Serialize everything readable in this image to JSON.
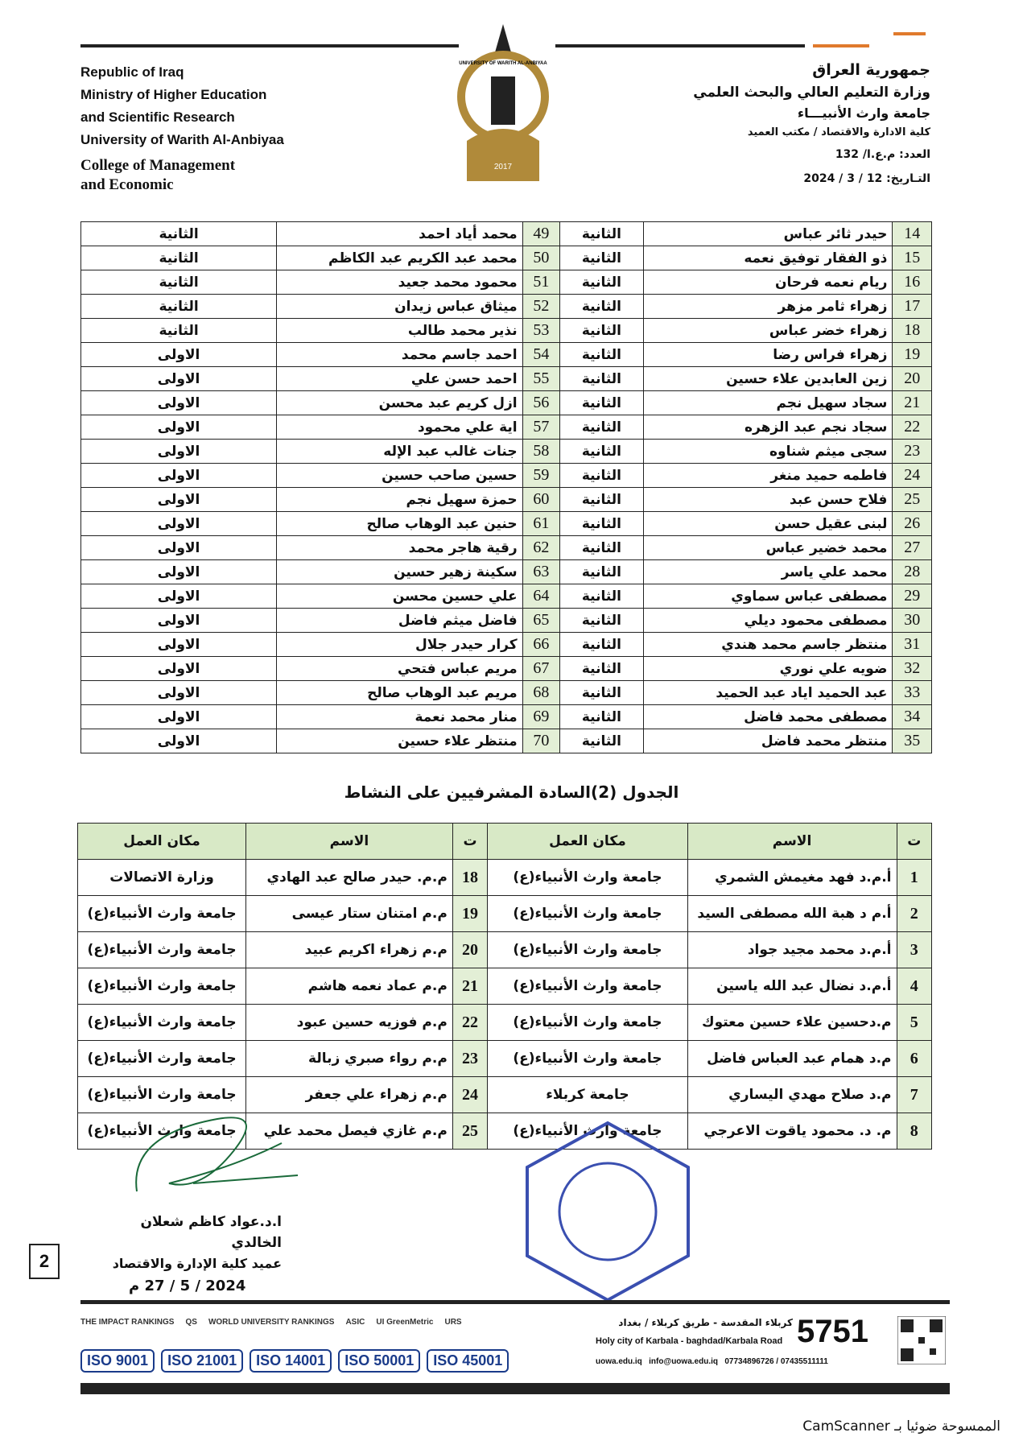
{
  "header": {
    "english": [
      "Republic of Iraq",
      "Ministry of Higher Education",
      "and Scientific Research",
      "University of Warith Al-Anbiyaa"
    ],
    "college": [
      "College of Management",
      "and Economic"
    ],
    "arabic": [
      "جمهورية العراق",
      "وزارة التعليم العالي والبحث العلمي",
      "جامعة وارث الأنبيـــاء",
      "كلية الادارة والاقتصاد / مكتب العميد"
    ],
    "number": "العدد: م.ع.ا/ 132",
    "date": "التـاريخ: 12 / 3 / 2024",
    "logo_text": "UNIVERSITY OF WARITH AL-ANBIYAA",
    "logo_year": "2017"
  },
  "table1": {
    "rows": [
      [
        14,
        "حيدر ثائر عباس",
        "الثانية",
        49,
        "محمد أياد احمد",
        "الثانية"
      ],
      [
        15,
        "ذو الفقار توفيق نعمه",
        "الثانية",
        50,
        "محمد عبد الكريم عبد الكاظم",
        "الثانية"
      ],
      [
        16,
        "ريام نعمه فرحان",
        "الثانية",
        51,
        "محمود محمد جعيد",
        "الثانية"
      ],
      [
        17,
        "زهراء ثامر مزهر",
        "الثانية",
        52,
        "ميثاق عباس زيدان",
        "الثانية"
      ],
      [
        18,
        "زهراء خضر عباس",
        "الثانية",
        53,
        "نذير محمد طالب",
        "الثانية"
      ],
      [
        19,
        "زهراء فراس رضا",
        "الثانية",
        54,
        "احمد جاسم محمد",
        "الاولى"
      ],
      [
        20,
        "زين العابدين علاء حسين",
        "الثانية",
        55,
        "احمد حسن علي",
        "الاولى"
      ],
      [
        21,
        "سجاد سهيل نجم",
        "الثانية",
        56,
        "ازل كريم عبد محسن",
        "الاولى"
      ],
      [
        22,
        "سجاد نجم عبد الزهره",
        "الثانية",
        57,
        "اية علي محمود",
        "الاولى"
      ],
      [
        23,
        "سجى ميثم شناوه",
        "الثانية",
        58,
        "جنات غالب عبد الإله",
        "الاولى"
      ],
      [
        24,
        "فاطمه حميد منغر",
        "الثانية",
        59,
        "حسين صاحب حسين",
        "الاولى"
      ],
      [
        25,
        "فلاح حسن عبد",
        "الثانية",
        60,
        "حمزة سهيل نجم",
        "الاولى"
      ],
      [
        26,
        "لبنى عقيل حسن",
        "الثانية",
        61,
        "حنين عبد الوهاب صالح",
        "الاولى"
      ],
      [
        27,
        "محمد خضير عباس",
        "الثانية",
        62,
        "رقية هاجر محمد",
        "الاولى"
      ],
      [
        28,
        "محمد علي ياسر",
        "الثانية",
        63,
        "سكينة زهير حسين",
        "الاولى"
      ],
      [
        29,
        "مصطفى عباس سماوي",
        "الثانية",
        64,
        "علي حسين محسن",
        "الاولى"
      ],
      [
        30,
        "مصطفى محمود ديلي",
        "الثانية",
        65,
        "فاضل ميثم فاضل",
        "الاولى"
      ],
      [
        31,
        "منتظر جاسم محمد هندي",
        "الثانية",
        66,
        "كرار حيدر جلال",
        "الاولى"
      ],
      [
        32,
        "ضويه علي نوري",
        "الثانية",
        67,
        "مريم عباس فتحي",
        "الاولى"
      ],
      [
        33,
        "عبد الحميد اياد عبد الحميد",
        "الثانية",
        68,
        "مريم عبد الوهاب صالح",
        "الاولى"
      ],
      [
        34,
        "مصطفى محمد فاضل",
        "الثانية",
        69,
        "منار محمد نعمة",
        "الاولى"
      ],
      [
        35,
        "منتظر محمد فاضل",
        "الثانية",
        70,
        "منتظر علاء حسين",
        "الاولى"
      ]
    ]
  },
  "table2": {
    "title": "الجدول (2)السادة المشرفيين على النشاط",
    "header": [
      "ت",
      "الاسم",
      "مكان العمل",
      "ت",
      "الاسم",
      "مكان العمل"
    ],
    "rows": [
      [
        1,
        "أ.م.د فهد مغيمش الشمري",
        "جامعة وارث الأنبياء(ع)",
        18,
        "م.م. حيدر صالح عبد الهادي",
        "وزارة الاتصالات"
      ],
      [
        2,
        "أ.م د هبة الله مصطفى السيد",
        "جامعة وارث الأنبياء(ع)",
        19,
        "م.م امتنان ستار عيسى",
        "جامعة وارث الأنبياء(ع)"
      ],
      [
        3,
        "أ.م.د محمد مجيد جواد",
        "جامعة وارث الأنبياء(ع)",
        20,
        "م.م زهراء اكريم عبيد",
        "جامعة وارث الأنبياء(ع)"
      ],
      [
        4,
        "أ.م.د نضال عبد الله ياسين",
        "جامعة وارث الأنبياء(ع)",
        21,
        "م.م عماد نعمه هاشم",
        "جامعة وارث الأنبياء(ع)"
      ],
      [
        5,
        "م.دحسين علاء حسين معتوك",
        "جامعة وارث الأنبياء(ع)",
        22,
        "م.م فوزيه حسين عبود",
        "جامعة وارث الأنبياء(ع)"
      ],
      [
        6,
        "م.د همام عبد العباس فاضل",
        "جامعة وارث الأنبياء(ع)",
        23,
        "م.م رواء صبري زبالة",
        "جامعة وارث الأنبياء(ع)"
      ],
      [
        7,
        "م.د صلاح مهدي اليساري",
        "جامعة كربلاء",
        24,
        "م.م زهراء علي جعفر",
        "جامعة وارث الأنبياء(ع)"
      ],
      [
        8,
        "م. د. محمود ياقوت الاعرجي",
        "جامعة وارث الأنبياء(ع)",
        25,
        "م.م غازي فيصل محمد علي",
        "جامعة وارث الأنبياء(ع)"
      ]
    ]
  },
  "signature": {
    "name": "ا.د.عواد كاظم شعلان الخالدي",
    "title": "عميد كلية الإدارة والاقتصاد",
    "date": "2024 / 5 / 27 م"
  },
  "page_number": "2",
  "footer": {
    "rankings": [
      "THE IMPACT RANKINGS",
      "QS",
      "WORLD UNIVERSITY RANKINGS",
      "ASIC",
      "UI GreenMetric",
      "URS"
    ],
    "iso": [
      "ISO 9001",
      "ISO 21001",
      "ISO 14001",
      "ISO 50001",
      "ISO 45001"
    ],
    "hotline": "5751",
    "address_ar": "كربلاء المقدسة - طريق كربلاء / بغداد",
    "address_en": "Holy city of Karbala - baghdad/Karbala Road",
    "web": "uowa.edu.iq",
    "email": "info@uowa.edu.iq",
    "phones": "07734896726 / 07435511111"
  },
  "scanner": "الممسوحة ضوئيا بـ CamScanner"
}
